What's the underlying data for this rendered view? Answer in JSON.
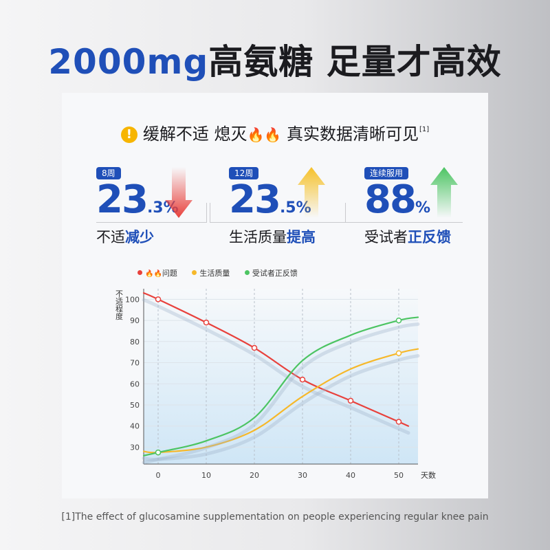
{
  "headline": {
    "number": "2000mg",
    "text": "高氨糖 足量才高效"
  },
  "subtitle": {
    "icon": "warning-icon",
    "text_a": "缓解不适 熄灭",
    "text_b": "真实数据清晰可见",
    "ref": "[1]"
  },
  "stats": [
    {
      "badge": "8周",
      "value": "23",
      "fraction": ".3%",
      "caption_plain": "不适",
      "caption_emph": "减少",
      "arrow": "down",
      "arrow_color": "#e8413c"
    },
    {
      "badge": "12周",
      "value": "23",
      "fraction": ".5%",
      "caption_plain": "生活质量",
      "caption_emph": "提高",
      "arrow": "up",
      "arrow_color": "#f6c12a"
    },
    {
      "badge": "连续服用",
      "value": "88",
      "fraction": "%",
      "caption_plain": "受试者",
      "caption_emph": "正反馈",
      "arrow": "up",
      "arrow_color": "#4cc462"
    }
  ],
  "legend": [
    {
      "label": "问题",
      "color": "#e8413c",
      "prefix_icon": "fire-icon"
    },
    {
      "label": "生活质量",
      "color": "#f6b82a"
    },
    {
      "label": "受试者正反馈",
      "color": "#4cc462"
    }
  ],
  "chart_data": {
    "type": "line",
    "ylabel": "不适程度",
    "xlabel": "天数",
    "xticks": [
      0,
      10,
      20,
      30,
      40,
      50
    ],
    "yticks": [
      30,
      40,
      50,
      60,
      70,
      80,
      90,
      100
    ],
    "xlim": [
      -3,
      54
    ],
    "ylim": [
      22,
      105
    ],
    "grid": "vertical dashed",
    "series": [
      {
        "name": "问题",
        "color": "#e8413c",
        "x": [
          -3,
          0,
          10,
          20,
          30,
          40,
          50,
          52
        ],
        "y": [
          103,
          100,
          89,
          77,
          62,
          52,
          42,
          40
        ],
        "markers": [
          [
            0,
            100
          ],
          [
            10,
            89
          ],
          [
            20,
            77
          ],
          [
            30,
            62
          ],
          [
            40,
            52
          ],
          [
            50,
            42
          ]
        ]
      },
      {
        "name": "生活质量",
        "color": "#f6b82a",
        "x": [
          -3,
          0,
          10,
          20,
          30,
          40,
          50,
          54
        ],
        "y": [
          28,
          27.5,
          30,
          38,
          54,
          67,
          74.5,
          76.5
        ],
        "markers": [
          [
            0,
            27.5
          ],
          [
            50,
            74.5
          ]
        ]
      },
      {
        "name": "受试者正反馈",
        "color": "#4cc462",
        "x": [
          -3,
          0,
          10,
          20,
          30,
          40,
          50,
          54
        ],
        "y": [
          26,
          27.5,
          33,
          44,
          71,
          83,
          90,
          91.5
        ],
        "markers": [
          [
            0,
            27.5
          ],
          [
            50,
            90
          ]
        ]
      }
    ]
  },
  "footnote": "[1]The effect of glucosamine supplementation on people experiencing regular knee pain"
}
